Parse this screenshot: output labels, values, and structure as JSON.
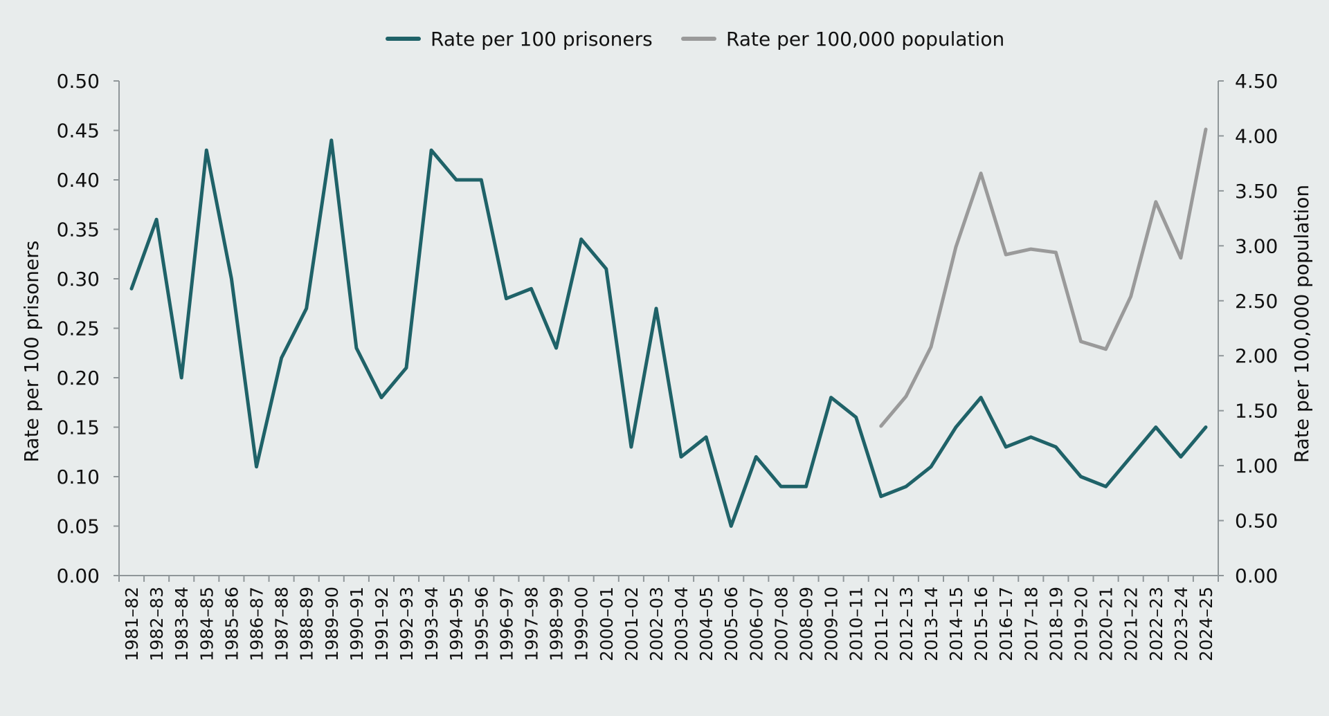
{
  "chart_data": {
    "type": "line",
    "title": "",
    "xlabel": "",
    "ylabel": "Rate per 100 prisoners",
    "y2label": "Rate per 100,000 population",
    "ylim": [
      0,
      0.5
    ],
    "y2lim": [
      0,
      4.5
    ],
    "yticks": [
      "0.00",
      "0.05",
      "0.10",
      "0.15",
      "0.20",
      "0.25",
      "0.30",
      "0.35",
      "0.40",
      "0.45",
      "0.50"
    ],
    "y2ticks": [
      "0.00",
      "0.50",
      "1.00",
      "1.50",
      "2.00",
      "2.50",
      "3.00",
      "3.50",
      "4.00",
      "4.50"
    ],
    "grid": false,
    "legend_position": "top-center",
    "categories": [
      "1981–82",
      "1982–83",
      "1983–84",
      "1984–85",
      "1985–86",
      "1986–87",
      "1987–88",
      "1988–89",
      "1989–90",
      "1990–91",
      "1991–92",
      "1992–93",
      "1993–94",
      "1994–95",
      "1995–96",
      "1996–97",
      "1997–98",
      "1998–99",
      "1999–00",
      "2000–01",
      "2001–02",
      "2002–03",
      "2003–04",
      "2004–05",
      "2005–06",
      "2006–07",
      "2007–08",
      "2008–09",
      "2009–10",
      "2010–11",
      "2011–12",
      "2012–13",
      "2013–14",
      "2014–15",
      "2015–16",
      "2016–17",
      "2017–18",
      "2018–19",
      "2019–20",
      "2020–21",
      "2021–22",
      "2022–23",
      "2023–24",
      "2024–25"
    ],
    "series": [
      {
        "name": "Rate per 100 prisoners",
        "axis": "left",
        "color": "#1f6268",
        "values": [
          0.29,
          0.36,
          0.2,
          0.43,
          0.3,
          0.11,
          0.22,
          0.27,
          0.44,
          0.23,
          0.18,
          0.21,
          0.43,
          0.4,
          0.4,
          0.28,
          0.29,
          0.23,
          0.34,
          0.31,
          0.13,
          0.27,
          0.12,
          0.14,
          0.05,
          0.12,
          0.09,
          0.09,
          0.18,
          0.16,
          0.08,
          0.09,
          0.11,
          0.15,
          0.18,
          0.13,
          0.14,
          0.13,
          0.1,
          0.09,
          0.12,
          0.15,
          0.12,
          0.15
        ]
      },
      {
        "name": "Rate per 100,000 population",
        "axis": "right",
        "color": "#9a9a9a",
        "values": [
          null,
          null,
          null,
          null,
          null,
          null,
          null,
          null,
          null,
          null,
          null,
          null,
          null,
          null,
          null,
          null,
          null,
          null,
          null,
          null,
          null,
          null,
          null,
          null,
          null,
          null,
          null,
          null,
          null,
          null,
          1.36,
          1.63,
          2.08,
          2.99,
          3.66,
          2.92,
          2.97,
          2.94,
          2.13,
          2.06,
          2.54,
          3.4,
          2.89,
          4.06
        ]
      }
    ]
  }
}
